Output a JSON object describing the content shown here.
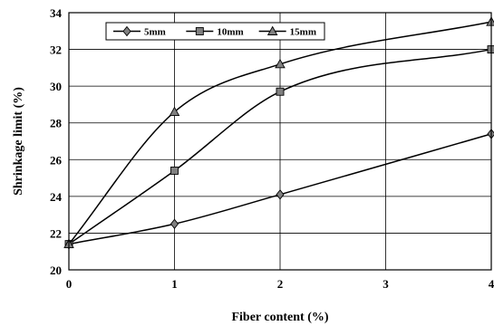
{
  "chart_data": {
    "type": "line",
    "x": [
      0,
      1,
      2,
      4
    ],
    "xlim": [
      0,
      4
    ],
    "ylim": [
      20,
      34
    ],
    "xticks": [
      "0",
      "1",
      "2",
      "3",
      "4"
    ],
    "yticks": [
      "20",
      "22",
      "24",
      "26",
      "28",
      "30",
      "32",
      "34"
    ],
    "xlabel": "Fiber content (%)",
    "ylabel": "Shrinkage limit (%)",
    "grid": true,
    "legend_position": "top-left",
    "series": [
      {
        "name": "5mm",
        "marker": "diamond",
        "values": [
          21.4,
          22.5,
          24.1,
          27.4
        ]
      },
      {
        "name": "10mm",
        "marker": "square",
        "values": [
          21.4,
          25.4,
          29.7,
          32.0
        ]
      },
      {
        "name": "15mm",
        "marker": "triangle",
        "values": [
          21.4,
          28.6,
          31.2,
          33.5
        ]
      }
    ],
    "colors": {
      "line": "#000000",
      "marker_fill": "#808080",
      "grid": "#000000"
    }
  }
}
